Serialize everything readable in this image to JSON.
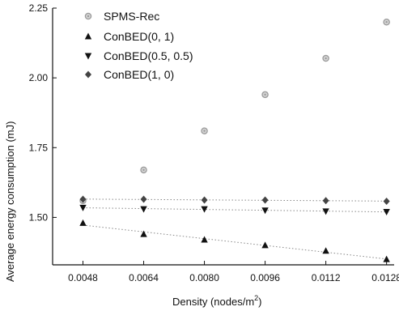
{
  "chart_data": {
    "type": "scatter",
    "title": "",
    "xlabel": "Density (nodes/m",
    "xlabel_superscript": "2",
    "xlabel_suffix": ")",
    "ylabel": "Average energy consumption (mJ)",
    "xlim": [
      0.004,
      0.013
    ],
    "ylim": [
      1.33,
      2.25
    ],
    "x": [
      0.0048,
      0.0064,
      0.008,
      0.0096,
      0.0112,
      0.0128
    ],
    "xticks": [
      "0.0048",
      "0.0064",
      "0.0080",
      "0.0096",
      "0.0112",
      "0.0128"
    ],
    "yticks": [
      "1.50",
      "1.75",
      "2.00",
      "2.25"
    ],
    "ytick_values": [
      1.5,
      1.75,
      2.0,
      2.25
    ],
    "grid": false,
    "legend_position": "top-left",
    "series": [
      {
        "name": "SPMS-Rec",
        "marker": "circle",
        "color": "#9a9a9a",
        "values": [
          1.56,
          1.67,
          1.81,
          1.94,
          2.07,
          2.2
        ],
        "trend": false
      },
      {
        "name": "ConBED(0, 1)",
        "marker": "triangle-up",
        "color": "#111111",
        "values": [
          1.48,
          1.44,
          1.42,
          1.4,
          1.38,
          1.35
        ],
        "trend": true
      },
      {
        "name": "ConBED(0.5, 0.5)",
        "marker": "triangle-down",
        "color": "#111111",
        "values": [
          1.535,
          1.53,
          1.53,
          1.525,
          1.522,
          1.52
        ],
        "trend": true
      },
      {
        "name": "ConBED(1, 0)",
        "marker": "diamond",
        "color": "#444444",
        "values": [
          1.565,
          1.565,
          1.562,
          1.562,
          1.56,
          1.558
        ],
        "trend": true
      }
    ]
  }
}
